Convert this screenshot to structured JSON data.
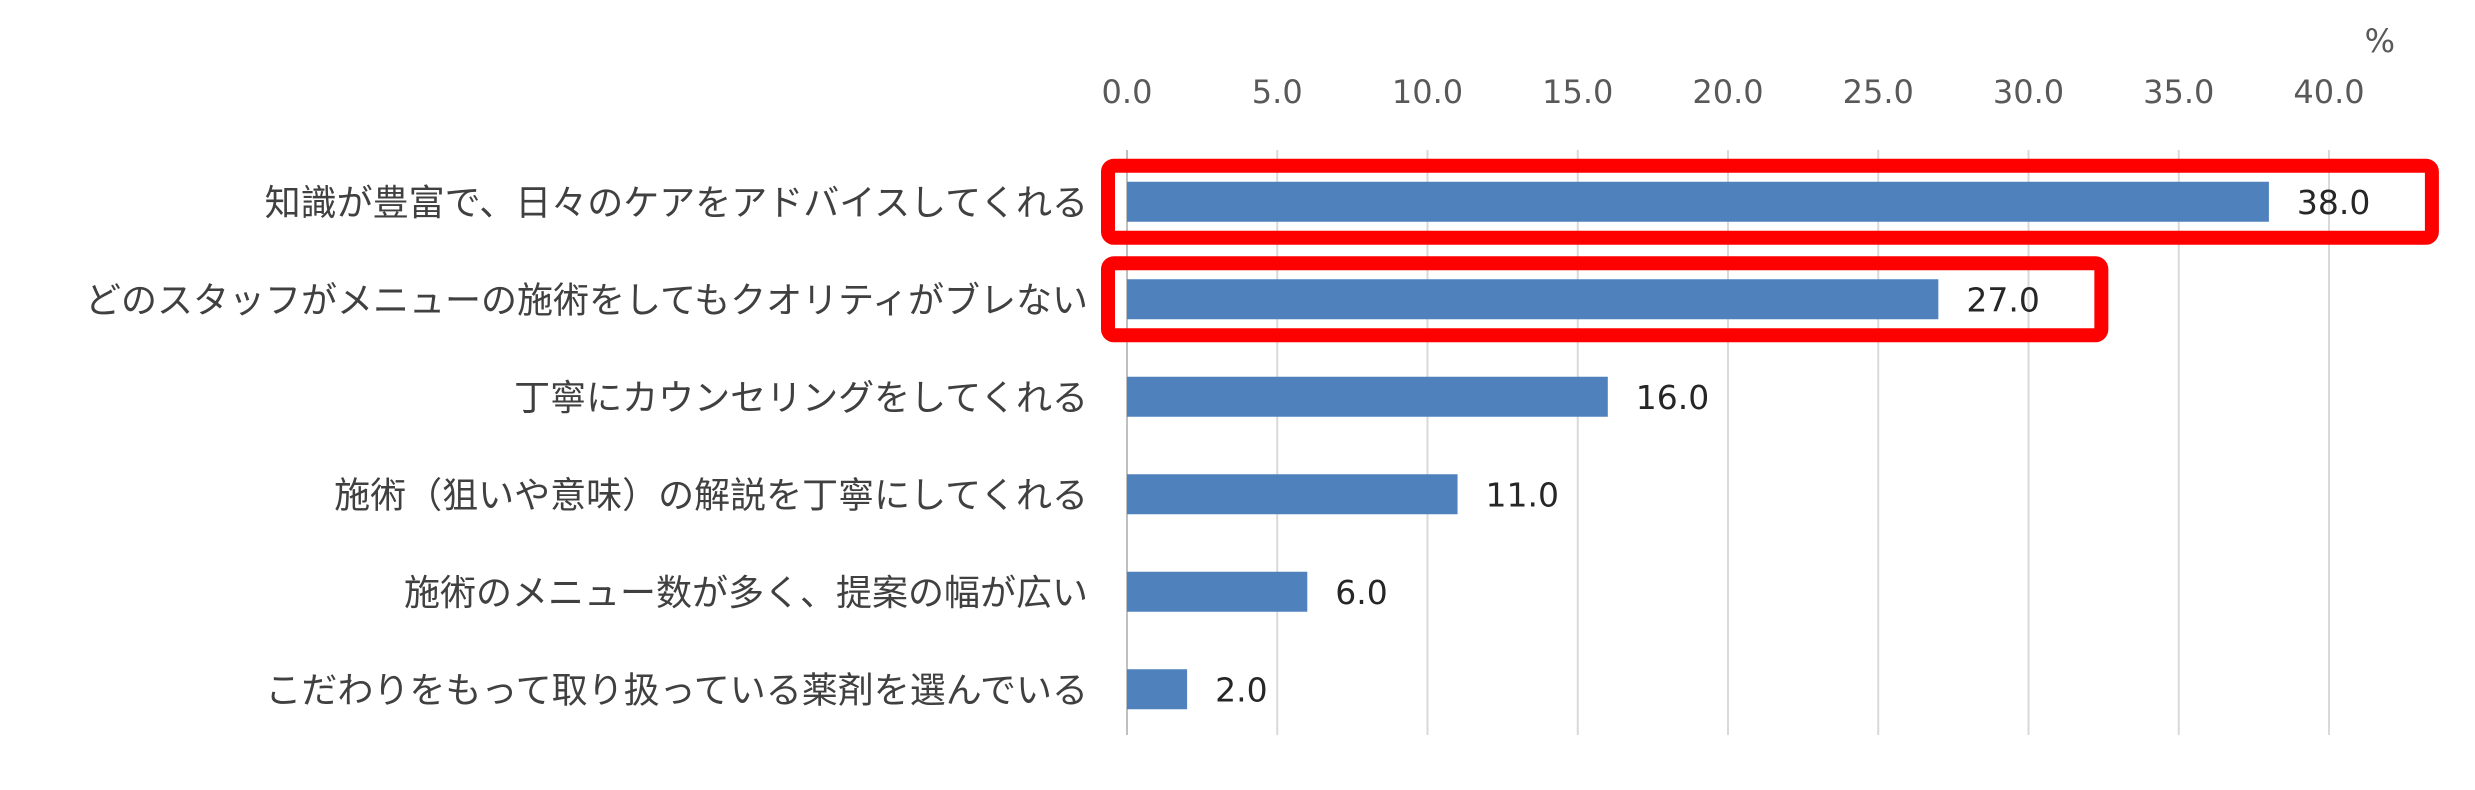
{
  "chart_data": {
    "type": "bar",
    "orientation": "horizontal",
    "unit": "%",
    "categories": [
      "知識が豊富で、日々のケアをアドバイスしてくれる",
      "どのスタッフがメニューの施術をしてもクオリティがブレない",
      "丁寧にカウンセリングをしてくれる",
      "施術（狙いや意味）の解説を丁寧にしてくれる",
      "施術のメニュー数が多く、提案の幅が広い",
      "こだわりをもって取り扱っている薬剤を選んでいる"
    ],
    "values": [
      38.0,
      27.0,
      16.0,
      11.0,
      6.0,
      2.0
    ],
    "data_labels": [
      "38.0",
      "27.0",
      "16.0",
      "11.0",
      "6.0",
      "2.0"
    ],
    "xlim": [
      0,
      42
    ],
    "ticks": [
      0,
      5,
      10,
      15,
      20,
      25,
      30,
      35,
      40
    ],
    "tick_labels": [
      "0.0",
      "5.0",
      "10.0",
      "15.0",
      "20.0",
      "25.0",
      "30.0",
      "35.0",
      "40.0"
    ],
    "tick_position": "top",
    "grid": true,
    "bar_color": "#4f81bd",
    "highlight_color": "#ff0000",
    "highlighted_categories": [
      0,
      1
    ]
  }
}
